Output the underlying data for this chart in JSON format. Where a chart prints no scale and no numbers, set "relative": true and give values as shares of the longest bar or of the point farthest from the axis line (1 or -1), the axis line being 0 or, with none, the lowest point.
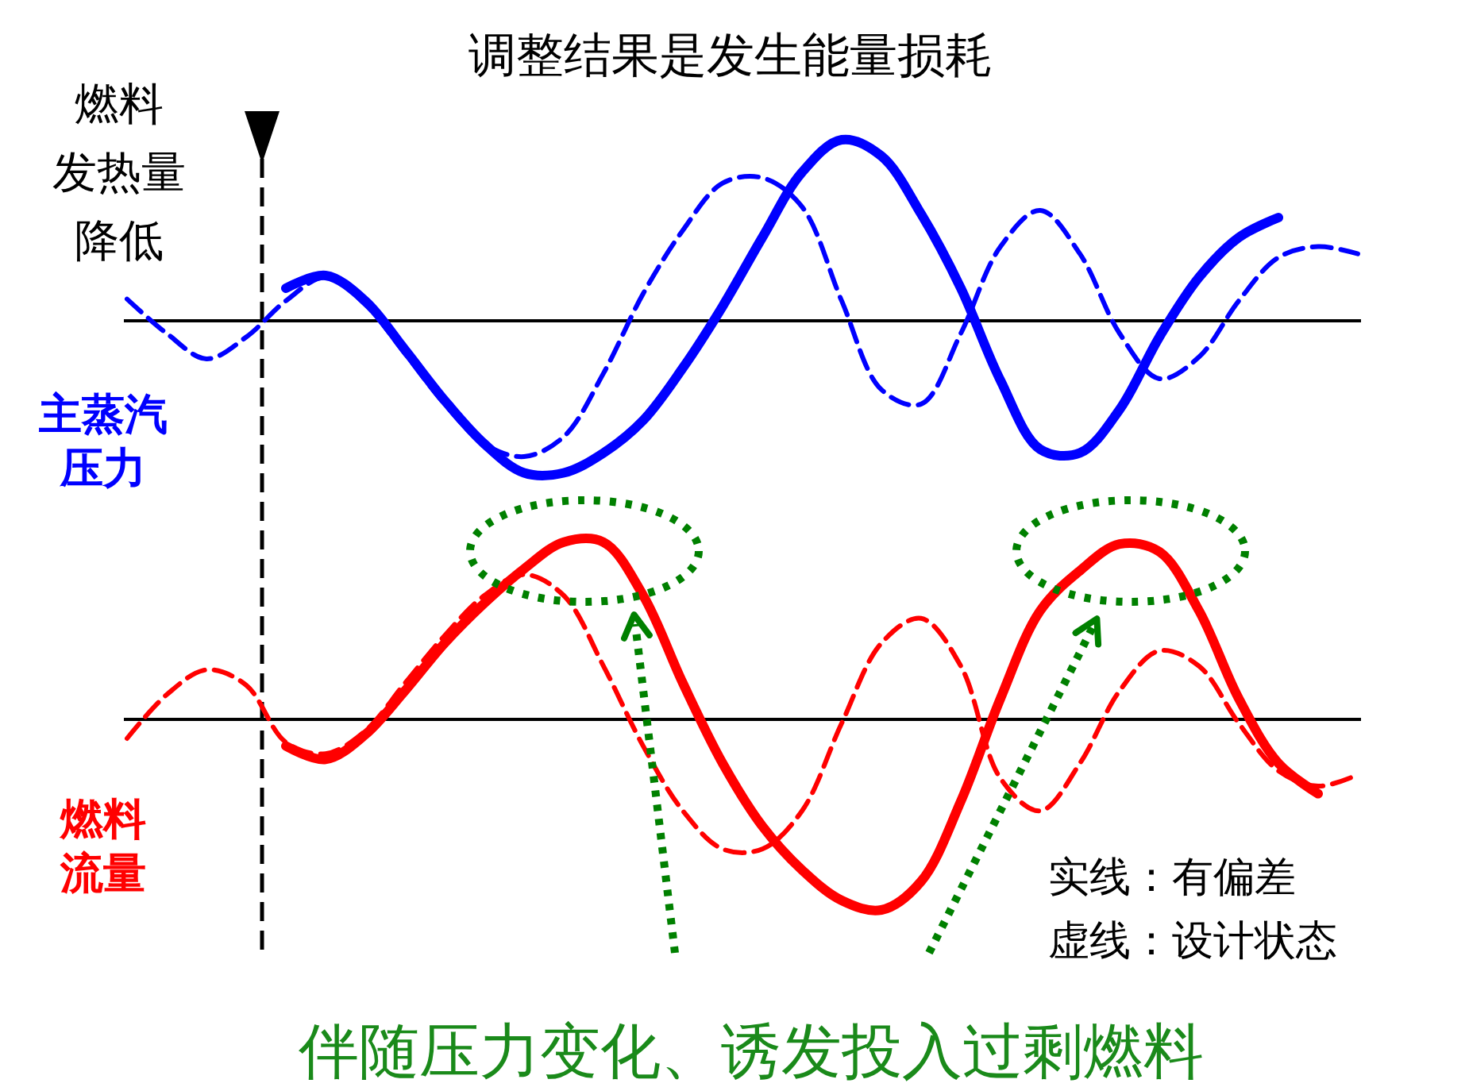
{
  "chart_data": [
    {
      "type": "line",
      "relative": true,
      "title": "调整结果是发生能量损耗",
      "ylabel": "主蒸汽压力",
      "annotations": [
        "燃料发热量降低"
      ],
      "categories": [
        null,
        null,
        null,
        null,
        null,
        null,
        null,
        null,
        null,
        null,
        null,
        null,
        null,
        null,
        null,
        null,
        null,
        null,
        null,
        null,
        null,
        null,
        null,
        null,
        null,
        null,
        null,
        null,
        null,
        null,
        null,
        null
      ],
      "series": [
        {
          "color": "#0000ff",
          "line_style": "solid",
          "values": [
            null,
            null,
            null,
            null,
            0.18,
            0.25,
            0.11,
            -0.16,
            -0.44,
            -0.68,
            -0.84,
            -0.84,
            -0.73,
            -0.55,
            -0.26,
            0.08,
            0.46,
            0.82,
            1,
            0.91,
            0.59,
            0.18,
            -0.33,
            -0.71,
            -0.73,
            -0.49,
            -0.09,
            0.24,
            0.46,
            0.57,
            null,
            null
          ]
        },
        {
          "color": "#0000ff",
          "line_style": "dashed",
          "values": [
            0.12,
            -0.07,
            -0.21,
            -0.09,
            0.11,
            0.24,
            0.09,
            -0.18,
            -0.46,
            -0.68,
            -0.75,
            -0.64,
            -0.29,
            0.15,
            0.5,
            0.76,
            0.79,
            0.63,
            0.11,
            -0.38,
            -0.46,
            -0.07,
            0.41,
            0.61,
            0.37,
            -0.07,
            -0.32,
            -0.2,
            0.11,
            0.35,
            0.41,
            0.37
          ]
        }
      ]
    },
    {
      "type": "line",
      "relative": true,
      "ylabel": "燃料流量",
      "annotations": [
        "实线：有偏差",
        "虚线：设计状态",
        "伴随压力变化、诱发投入过剩燃料"
      ],
      "categories": [
        null,
        null,
        null,
        null,
        null,
        null,
        null,
        null,
        null,
        null,
        null,
        null,
        null,
        null,
        null,
        null,
        null,
        null,
        null,
        null,
        null,
        null,
        null,
        null,
        null,
        null,
        null,
        null,
        null,
        null,
        null,
        null
      ],
      "series": [
        {
          "color": "#ff0000",
          "line_style": "solid",
          "values": [
            null,
            null,
            null,
            null,
            -0.14,
            -0.21,
            -0.08,
            0.15,
            0.4,
            0.61,
            0.79,
            0.93,
            0.93,
            0.65,
            0.19,
            -0.23,
            -0.56,
            -0.79,
            -0.95,
            -1,
            -0.85,
            -0.43,
            0.11,
            0.57,
            0.78,
            0.92,
            0.88,
            0.57,
            0.11,
            -0.23,
            -0.39,
            null
          ]
        },
        {
          "color": "#ff0000",
          "line_style": "dashed",
          "values": [
            -0.1,
            0.13,
            0.26,
            0.18,
            -0.12,
            -0.18,
            -0.06,
            0.19,
            0.44,
            0.65,
            0.76,
            0.65,
            0.28,
            -0.14,
            -0.48,
            -0.68,
            -0.68,
            -0.48,
            -0.02,
            0.4,
            0.53,
            0.28,
            -0.31,
            -0.48,
            -0.23,
            0.15,
            0.36,
            0.28,
            -0.02,
            -0.27,
            -0.35,
            -0.29
          ]
        }
      ]
    }
  ]
}
